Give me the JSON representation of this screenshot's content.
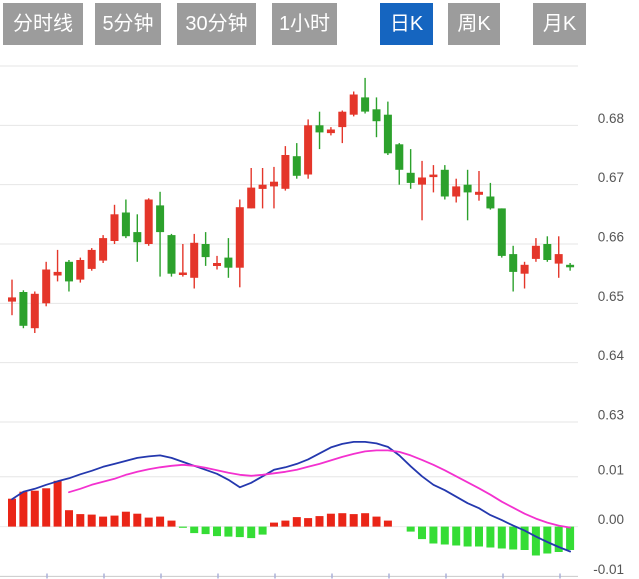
{
  "tabs": {
    "active_index": 4,
    "active_bg": "#1565c0",
    "inactive_bg": "#9c9c9c",
    "items": [
      {
        "label": "分时线"
      },
      {
        "label": "5分钟"
      },
      {
        "label": "30分钟"
      },
      {
        "label": "1小时"
      },
      {
        "label": "日K"
      },
      {
        "label": "周K"
      },
      {
        "label": "月K"
      }
    ]
  },
  "chart_data": {
    "type": "candlestick",
    "title": "",
    "legend_position": "none",
    "grid": true,
    "panels": [
      "price",
      "macd"
    ],
    "main": {
      "ylim": [
        0.63,
        0.69
      ],
      "y_ticks": [
        {
          "value": 0.69,
          "label": ""
        },
        {
          "value": 0.68,
          "label": "0.68"
        },
        {
          "value": 0.67,
          "label": "0.67"
        },
        {
          "value": 0.66,
          "label": "0.66"
        },
        {
          "value": 0.65,
          "label": "0.65"
        },
        {
          "value": 0.64,
          "label": "0.64"
        },
        {
          "value": 0.63,
          "label": "0.63"
        }
      ],
      "candles": [
        {
          "o": 0.6503,
          "h": 0.654,
          "l": 0.648,
          "c": 0.651
        },
        {
          "o": 0.6519,
          "h": 0.6522,
          "l": 0.6458,
          "c": 0.6462
        },
        {
          "o": 0.6458,
          "h": 0.652,
          "l": 0.645,
          "c": 0.6516
        },
        {
          "o": 0.65,
          "h": 0.657,
          "l": 0.6495,
          "c": 0.6557
        },
        {
          "o": 0.6547,
          "h": 0.659,
          "l": 0.6537,
          "c": 0.6553
        },
        {
          "o": 0.657,
          "h": 0.6573,
          "l": 0.652,
          "c": 0.6537
        },
        {
          "o": 0.654,
          "h": 0.6577,
          "l": 0.6535,
          "c": 0.6573
        },
        {
          "o": 0.6558,
          "h": 0.6593,
          "l": 0.6555,
          "c": 0.659
        },
        {
          "o": 0.6572,
          "h": 0.6615,
          "l": 0.6568,
          "c": 0.661
        },
        {
          "o": 0.6605,
          "h": 0.6666,
          "l": 0.66,
          "c": 0.665
        },
        {
          "o": 0.6653,
          "h": 0.6675,
          "l": 0.661,
          "c": 0.6613
        },
        {
          "o": 0.662,
          "h": 0.665,
          "l": 0.657,
          "c": 0.6603
        },
        {
          "o": 0.66,
          "h": 0.6677,
          "l": 0.6597,
          "c": 0.6675
        },
        {
          "o": 0.6665,
          "h": 0.6688,
          "l": 0.6545,
          "c": 0.662
        },
        {
          "o": 0.6615,
          "h": 0.6617,
          "l": 0.6545,
          "c": 0.655
        },
        {
          "o": 0.6548,
          "h": 0.66,
          "l": 0.6545,
          "c": 0.6552
        },
        {
          "o": 0.6543,
          "h": 0.6617,
          "l": 0.6525,
          "c": 0.6602
        },
        {
          "o": 0.66,
          "h": 0.662,
          "l": 0.6563,
          "c": 0.6578
        },
        {
          "o": 0.6563,
          "h": 0.658,
          "l": 0.6557,
          "c": 0.6568
        },
        {
          "o": 0.6577,
          "h": 0.661,
          "l": 0.6543,
          "c": 0.656
        },
        {
          "o": 0.656,
          "h": 0.6675,
          "l": 0.6527,
          "c": 0.6662
        },
        {
          "o": 0.666,
          "h": 0.6728,
          "l": 0.666,
          "c": 0.6695
        },
        {
          "o": 0.6693,
          "h": 0.6728,
          "l": 0.666,
          "c": 0.67
        },
        {
          "o": 0.6697,
          "h": 0.673,
          "l": 0.666,
          "c": 0.6705
        },
        {
          "o": 0.6693,
          "h": 0.6765,
          "l": 0.669,
          "c": 0.675
        },
        {
          "o": 0.6748,
          "h": 0.677,
          "l": 0.671,
          "c": 0.6715
        },
        {
          "o": 0.6717,
          "h": 0.681,
          "l": 0.671,
          "c": 0.68
        },
        {
          "o": 0.68,
          "h": 0.6823,
          "l": 0.676,
          "c": 0.6788
        },
        {
          "o": 0.6787,
          "h": 0.6797,
          "l": 0.6783,
          "c": 0.6793
        },
        {
          "o": 0.6797,
          "h": 0.6825,
          "l": 0.677,
          "c": 0.6823
        },
        {
          "o": 0.6818,
          "h": 0.6857,
          "l": 0.6815,
          "c": 0.6852
        },
        {
          "o": 0.6847,
          "h": 0.688,
          "l": 0.682,
          "c": 0.6823
        },
        {
          "o": 0.6827,
          "h": 0.6847,
          "l": 0.678,
          "c": 0.6807
        },
        {
          "o": 0.6818,
          "h": 0.684,
          "l": 0.675,
          "c": 0.6753
        },
        {
          "o": 0.6768,
          "h": 0.677,
          "l": 0.67,
          "c": 0.6725
        },
        {
          "o": 0.672,
          "h": 0.676,
          "l": 0.6693,
          "c": 0.6703
        },
        {
          "o": 0.67,
          "h": 0.674,
          "l": 0.664,
          "c": 0.6712
        },
        {
          "o": 0.6713,
          "h": 0.6733,
          "l": 0.6687,
          "c": 0.6717
        },
        {
          "o": 0.6725,
          "h": 0.6733,
          "l": 0.6675,
          "c": 0.668
        },
        {
          "o": 0.668,
          "h": 0.671,
          "l": 0.667,
          "c": 0.6697
        },
        {
          "o": 0.67,
          "h": 0.6725,
          "l": 0.664,
          "c": 0.6687
        },
        {
          "o": 0.6683,
          "h": 0.6723,
          "l": 0.6673,
          "c": 0.6688
        },
        {
          "o": 0.668,
          "h": 0.6703,
          "l": 0.6658,
          "c": 0.666
        },
        {
          "o": 0.666,
          "h": 0.666,
          "l": 0.6577,
          "c": 0.658
        },
        {
          "o": 0.6583,
          "h": 0.6597,
          "l": 0.652,
          "c": 0.6553
        },
        {
          "o": 0.655,
          "h": 0.657,
          "l": 0.6525,
          "c": 0.6565
        },
        {
          "o": 0.6575,
          "h": 0.661,
          "l": 0.657,
          "c": 0.6597
        },
        {
          "o": 0.66,
          "h": 0.6613,
          "l": 0.657,
          "c": 0.6573
        },
        {
          "o": 0.6567,
          "h": 0.6613,
          "l": 0.6543,
          "c": 0.6583
        },
        {
          "o": 0.6565,
          "h": 0.6568,
          "l": 0.6555,
          "c": 0.6563
        }
      ]
    },
    "macd": {
      "ylim": [
        -0.012,
        0.012
      ],
      "y_ticks": [
        {
          "value": 0.01,
          "label": "0.01"
        },
        {
          "value": 0.0,
          "label": "0.00"
        },
        {
          "value": -0.01,
          "label": "-0.01"
        }
      ],
      "histogram": [
        0.0056,
        0.007,
        0.0072,
        0.0077,
        0.0092,
        0.0033,
        0.0025,
        0.0024,
        0.002,
        0.0022,
        0.003,
        0.0026,
        0.0018,
        0.002,
        0.0012,
        -0.0002,
        -0.0013,
        -0.0015,
        -0.0019,
        -0.002,
        -0.0021,
        -0.0023,
        -0.0016,
        0.0008,
        0.0012,
        0.0019,
        0.0017,
        0.0021,
        0.0026,
        0.0027,
        0.0025,
        0.0027,
        0.002,
        0.0012,
        0.0,
        -0.001,
        -0.0025,
        -0.0034,
        -0.0036,
        -0.0038,
        -0.004,
        -0.004,
        -0.0042,
        -0.0044,
        -0.0046,
        -0.0047,
        -0.0058,
        -0.0054,
        -0.0051,
        -0.0047
      ],
      "dif": [
        0.0055,
        0.007,
        0.0076,
        0.0084,
        0.0091,
        0.0097,
        0.0105,
        0.0112,
        0.012,
        0.0126,
        0.0132,
        0.0138,
        0.0141,
        0.0143,
        0.0138,
        0.013,
        0.0122,
        0.0114,
        0.0106,
        0.0094,
        0.0079,
        0.0088,
        0.0101,
        0.0114,
        0.0119,
        0.0126,
        0.0135,
        0.0147,
        0.0159,
        0.0166,
        0.017,
        0.017,
        0.0167,
        0.016,
        0.0143,
        0.0121,
        0.0101,
        0.0084,
        0.0073,
        0.006,
        0.0047,
        0.0037,
        0.0023,
        0.0013,
        0.0002,
        -0.0008,
        -0.002,
        -0.0031,
        -0.0041,
        -0.005
      ],
      "dea": [
        null,
        null,
        null,
        null,
        null,
        0.0069,
        0.0076,
        0.0084,
        0.009,
        0.0096,
        0.0104,
        0.011,
        0.0115,
        0.0119,
        0.0122,
        0.0124,
        0.0122,
        0.0118,
        0.0113,
        0.0108,
        0.0104,
        0.0102,
        0.0104,
        0.0107,
        0.011,
        0.0114,
        0.012,
        0.0126,
        0.0133,
        0.014,
        0.0146,
        0.0151,
        0.0153,
        0.0153,
        0.015,
        0.0143,
        0.0134,
        0.0124,
        0.0113,
        0.0101,
        0.0089,
        0.0077,
        0.0064,
        0.005,
        0.0038,
        0.0026,
        0.0016,
        0.0008,
        0.0002,
        -0.0002
      ]
    },
    "colors": {
      "up": "#e4362a",
      "down": "#2ca12c",
      "hist_up": "#ea2517",
      "hist_down": "#35dd35",
      "dif_line": "#2438ae",
      "dea_line": "#f331cf",
      "grid": "#e6e6e6",
      "zero_line": "#ececec",
      "axis_line": "#c9c9c9",
      "tick": "#aab0d8",
      "label": "#555555"
    }
  }
}
